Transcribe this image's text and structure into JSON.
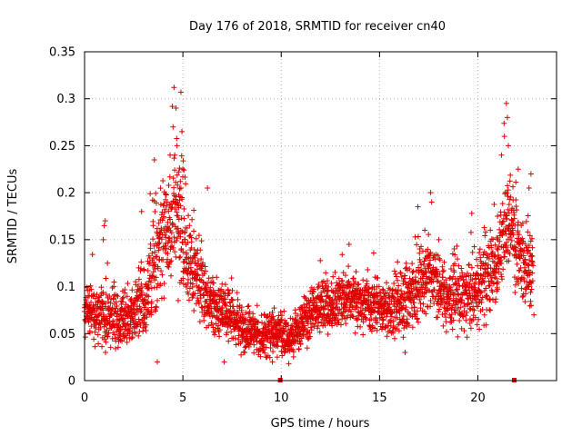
{
  "chart_data": {
    "type": "scatter",
    "title": "Day 176 of 2018, SRMTID for receiver cn40",
    "xlabel": "GPS time / hours",
    "ylabel": "SRMTID / TECUs",
    "xlim": [
      0,
      24
    ],
    "ylim": [
      0,
      0.35
    ],
    "xticks": [
      0,
      5,
      10,
      15,
      20
    ],
    "xtick_labels": [
      "0",
      "5",
      "10",
      "15",
      "20"
    ],
    "yticks": [
      0,
      0.05,
      0.1,
      0.15,
      0.2,
      0.25,
      0.3,
      0.35
    ],
    "ytick_labels": [
      "0",
      "0.05",
      "0.1",
      "0.15",
      "0.2",
      "0.25",
      "0.3",
      "0.35"
    ],
    "grid": true,
    "marker": "plus",
    "color": "#e00000",
    "trend": [
      [
        0.0,
        0.08
      ],
      [
        0.5,
        0.07
      ],
      [
        1.0,
        0.07
      ],
      [
        1.5,
        0.065
      ],
      [
        2.0,
        0.065
      ],
      [
        2.5,
        0.07
      ],
      [
        3.0,
        0.08
      ],
      [
        3.5,
        0.12
      ],
      [
        4.0,
        0.15
      ],
      [
        4.5,
        0.16
      ],
      [
        4.8,
        0.18
      ],
      [
        5.2,
        0.13
      ],
      [
        5.7,
        0.11
      ],
      [
        6.2,
        0.09
      ],
      [
        7.0,
        0.075
      ],
      [
        8.0,
        0.055
      ],
      [
        9.0,
        0.05
      ],
      [
        9.8,
        0.05
      ],
      [
        10.3,
        0.045
      ],
      [
        10.8,
        0.05
      ],
      [
        11.5,
        0.075
      ],
      [
        12.5,
        0.08
      ],
      [
        13.5,
        0.085
      ],
      [
        14.5,
        0.08
      ],
      [
        15.5,
        0.075
      ],
      [
        16.5,
        0.085
      ],
      [
        17.5,
        0.11
      ],
      [
        18.5,
        0.09
      ],
      [
        19.5,
        0.09
      ],
      [
        20.5,
        0.11
      ],
      [
        21.0,
        0.13
      ],
      [
        21.5,
        0.18
      ],
      [
        22.0,
        0.14
      ],
      [
        22.5,
        0.12
      ],
      [
        22.8,
        0.12
      ]
    ],
    "spread": [
      [
        0.0,
        0.025
      ],
      [
        3.0,
        0.03
      ],
      [
        3.5,
        0.05
      ],
      [
        4.0,
        0.05
      ],
      [
        5.0,
        0.06
      ],
      [
        5.5,
        0.04
      ],
      [
        6.5,
        0.03
      ],
      [
        8.0,
        0.02
      ],
      [
        10.5,
        0.02
      ],
      [
        12.0,
        0.025
      ],
      [
        15.0,
        0.025
      ],
      [
        17.0,
        0.035
      ],
      [
        18.5,
        0.03
      ],
      [
        20.5,
        0.035
      ],
      [
        21.5,
        0.05
      ],
      [
        22.0,
        0.045
      ],
      [
        22.8,
        0.04
      ]
    ],
    "peaks": [
      [
        4.55,
        0.312
      ],
      [
        4.9,
        0.307
      ],
      [
        4.65,
        0.29
      ],
      [
        4.5,
        0.27
      ],
      [
        4.95,
        0.265
      ],
      [
        4.7,
        0.25
      ],
      [
        5.0,
        0.225
      ],
      [
        3.55,
        0.235
      ],
      [
        4.35,
        0.24
      ],
      [
        6.25,
        0.205
      ],
      [
        3.7,
        0.02
      ],
      [
        21.45,
        0.295
      ],
      [
        21.5,
        0.28
      ],
      [
        21.35,
        0.26
      ],
      [
        21.55,
        0.25
      ],
      [
        21.2,
        0.24
      ],
      [
        22.05,
        0.225
      ],
      [
        22.7,
        0.22
      ],
      [
        22.6,
        0.205
      ],
      [
        17.6,
        0.2
      ],
      [
        17.65,
        0.19
      ],
      [
        16.95,
        0.185
      ],
      [
        17.3,
        0.16
      ],
      [
        13.45,
        0.145
      ],
      [
        1.05,
        0.17
      ],
      [
        1.0,
        0.165
      ],
      [
        0.95,
        0.15
      ],
      [
        2.9,
        0.18
      ],
      [
        9.55,
        0.02
      ],
      [
        9.8,
        0.025
      ],
      [
        16.3,
        0.03
      ],
      [
        7.1,
        0.02
      ],
      [
        22.85,
        0.07
      ],
      [
        22.15,
        0.13
      ],
      [
        21.0,
        0.175
      ]
    ],
    "floor_points": [
      [
        9.95,
        0.0
      ],
      [
        21.85,
        0.0
      ]
    ],
    "point_count": 3000
  }
}
